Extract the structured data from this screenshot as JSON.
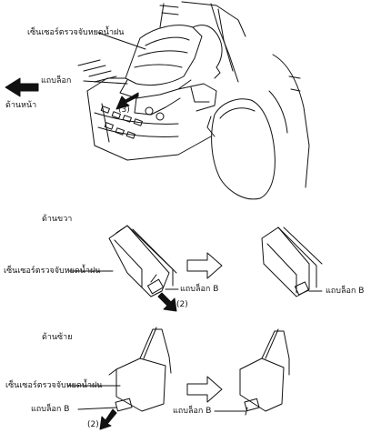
{
  "top": {
    "sensor_label": "เซ็นเซอร์ตรวจจับหยดน้ำฝน",
    "tab_label": "แถบล็อก",
    "front_label": "ด้านหน้า",
    "step_label": "(3)"
  },
  "right_side": {
    "heading": "ด้านขวา",
    "sensor_label": "เซ็นเซอร์ตรวจจับหยดน้ำฝน",
    "tab_b_label_1": "แถบล็อก B",
    "step_label": "(2)",
    "tab_b_label_2": "แถบล็อก B"
  },
  "left_side": {
    "heading": "ด้านซ้าย",
    "sensor_label": "เซ็นเซอร์ตรวจจับหยดน้ำฝน",
    "tab_b_label_1": "แถบล็อก B",
    "step_label": "(2)",
    "tab_b_label_2": "แถบล็อก B"
  }
}
